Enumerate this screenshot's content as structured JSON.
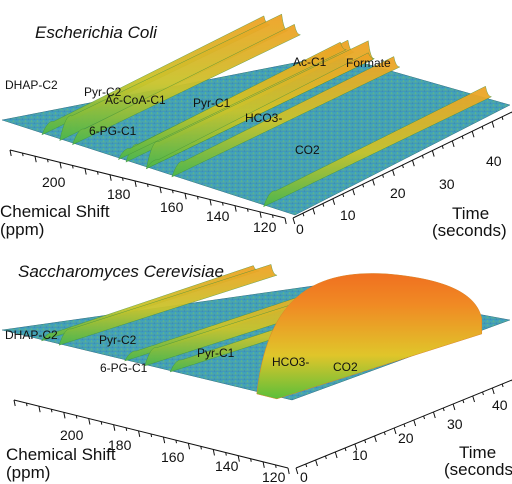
{
  "chart_data": [
    {
      "type": "surface",
      "title": "Escherichia Coli",
      "xlabel_line1": "Chemical Shift",
      "xlabel_line2": "(ppm)",
      "ylabel_line1": "Time",
      "ylabel_line2": "(seconds)",
      "x_ticks": [
        "200",
        "180",
        "160",
        "140",
        "120"
      ],
      "t_ticks": [
        "0",
        "10",
        "20",
        "30",
        "40"
      ],
      "peaks": [
        {
          "label": "DHAP-C2",
          "ppm": 212,
          "height": 0.3
        },
        {
          "label": "Pyr-C2",
          "ppm": 205,
          "height": 0.55
        },
        {
          "label": "Ac-CoA-C1",
          "ppm": 200,
          "height": 0.35
        },
        {
          "label": "6-PG-C1",
          "ppm": 179,
          "height": 0.4
        },
        {
          "label": "Pyr-C1",
          "ppm": 171,
          "height": 0.6
        },
        {
          "label": "Ac-C1",
          "ppm": 182,
          "height": 0.25
        },
        {
          "label": "Formate",
          "ppm": 171,
          "height": 0.2
        },
        {
          "label": "HCO3-",
          "ppm": 161,
          "height": 0.35
        },
        {
          "label": "CO2",
          "ppm": 125,
          "height": 0.35
        }
      ]
    },
    {
      "type": "surface",
      "title": "Saccharomyces Cerevisiae",
      "xlabel_line1": "Chemical Shift",
      "xlabel_line2": "(ppm)",
      "ylabel_line1": "Time",
      "ylabel_line2": "(seconds)",
      "x_ticks": [
        "200",
        "180",
        "160",
        "140",
        "120"
      ],
      "t_ticks": [
        "0",
        "10",
        "20",
        "30",
        "40"
      ],
      "peaks": [
        {
          "label": "DHAP-C2",
          "ppm": 212,
          "height": 0.2
        },
        {
          "label": "Pyr-C2",
          "ppm": 205,
          "height": 0.4
        },
        {
          "label": "6-PG-C1",
          "ppm": 179,
          "height": 0.25
        },
        {
          "label": "Pyr-C1",
          "ppm": 171,
          "height": 0.45
        },
        {
          "label": "HCO3-",
          "ppm": 161,
          "height": 0.3
        },
        {
          "label": "CO2",
          "ppm": 125,
          "height": 1.0
        }
      ]
    }
  ],
  "colors": {
    "floor": "#3f9ec7",
    "ridge_low": "#5cc23c",
    "ridge_mid": "#e3c52c",
    "ridge_high": "#f07a22"
  }
}
